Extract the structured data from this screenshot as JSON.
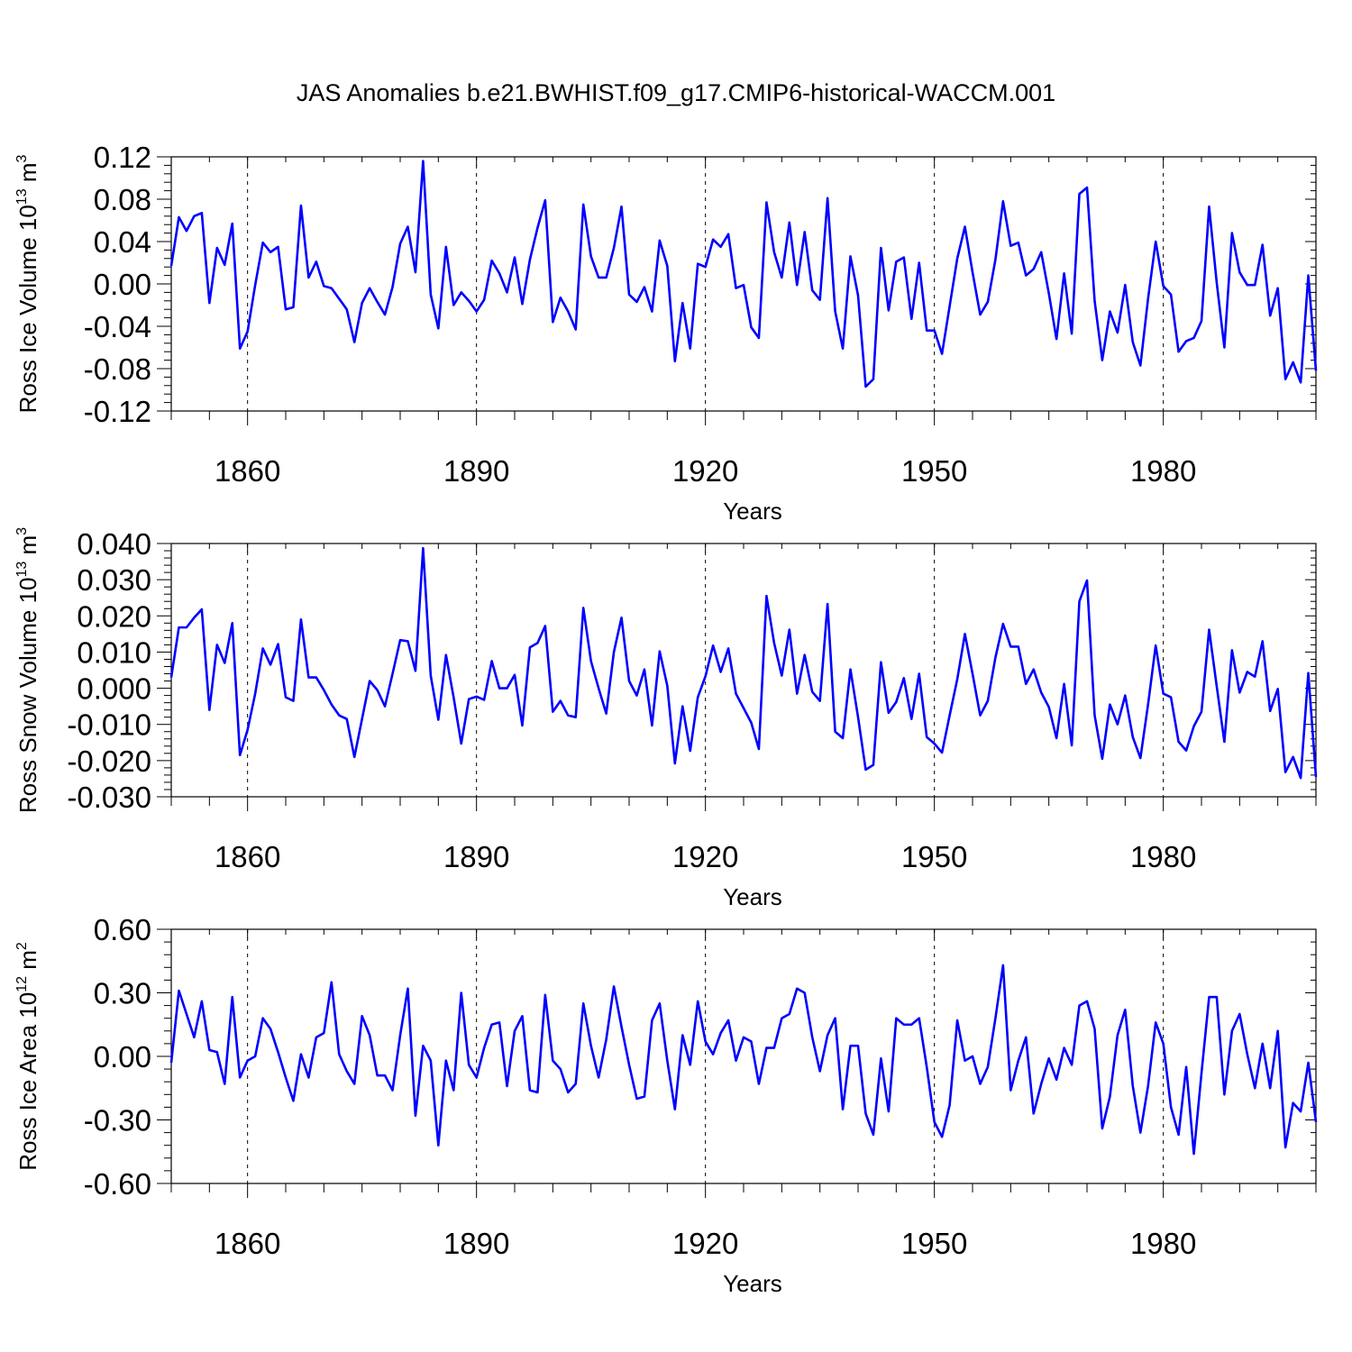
{
  "figure": {
    "title": "JAS Anomalies b.e21.BWHIST.f09_g17.CMIP6-historical-WACCM.001",
    "line_color": "#0000ff"
  },
  "chart_data": [
    {
      "type": "line",
      "name": "ross-ice-volume",
      "ylabel": "Ross Ice Volume 10",
      "ylabel_exp": "13",
      "ylabel_unit": " m",
      "ylabel_unit_exp": "3",
      "xlabel": "Years",
      "xlim": [
        1850,
        2000
      ],
      "ylim": [
        -0.12,
        0.12
      ],
      "yticks": [
        -0.12,
        -0.08,
        -0.04,
        0.0,
        0.04,
        0.08,
        0.12
      ],
      "ytick_labels": [
        "-0.12",
        "-0.08",
        "-0.04",
        "0.00",
        "0.04",
        "0.08",
        "0.12"
      ],
      "xticks": [
        1860,
        1890,
        1920,
        1950,
        1980
      ],
      "xtick_labels": [
        "1860",
        "1890",
        "1920",
        "1950",
        "1980"
      ],
      "x_start": 1850,
      "values": [
        0.017,
        0.063,
        0.05,
        0.064,
        0.067,
        -0.018,
        0.034,
        0.018,
        0.057,
        -0.061,
        -0.045,
        -0.001,
        0.039,
        0.03,
        0.035,
        -0.024,
        -0.022,
        0.074,
        0.006,
        0.021,
        -0.002,
        -0.004,
        -0.014,
        -0.024,
        -0.055,
        -0.018,
        -0.004,
        -0.017,
        -0.029,
        -0.003,
        0.038,
        0.054,
        0.011,
        0.116,
        -0.01,
        -0.042,
        0.035,
        -0.02,
        -0.008,
        -0.016,
        -0.026,
        -0.015,
        0.022,
        0.01,
        -0.008,
        0.025,
        -0.019,
        0.023,
        0.053,
        0.079,
        -0.036,
        -0.013,
        -0.026,
        -0.043,
        0.075,
        0.026,
        0.006,
        0.006,
        0.034,
        0.073,
        -0.01,
        -0.017,
        -0.003,
        -0.026,
        0.041,
        0.017,
        -0.073,
        -0.018,
        -0.061,
        0.019,
        0.016,
        0.042,
        0.035,
        0.047,
        -0.004,
        -0.001,
        -0.041,
        -0.051,
        0.077,
        0.03,
        0.006,
        0.058,
        -0.001,
        0.049,
        -0.006,
        -0.015,
        0.081,
        -0.026,
        -0.061,
        0.026,
        -0.011,
        -0.097,
        -0.09,
        0.034,
        -0.025,
        0.021,
        0.025,
        -0.033,
        0.02,
        -0.044,
        -0.044,
        -0.066,
        -0.021,
        0.024,
        0.054,
        0.011,
        -0.029,
        -0.017,
        0.023,
        0.078,
        0.036,
        0.039,
        0.008,
        0.014,
        0.03,
        -0.009,
        -0.052,
        0.01,
        -0.047,
        0.085,
        0.091,
        -0.016,
        -0.072,
        -0.026,
        -0.046,
        -0.001,
        -0.055,
        -0.077,
        -0.014,
        0.04,
        -0.002,
        -0.01,
        -0.064,
        -0.054,
        -0.051,
        -0.035,
        0.073,
        0.001,
        -0.06,
        0.048,
        0.011,
        -0.001,
        -0.001,
        0.037,
        -0.03,
        -0.004,
        -0.09,
        -0.074,
        -0.093,
        0.008,
        -0.082
      ]
    },
    {
      "type": "line",
      "name": "ross-snow-volume",
      "ylabel": "Ross Snow Volume 10",
      "ylabel_exp": "13",
      "ylabel_unit": " m",
      "ylabel_unit_exp": "3",
      "xlabel": "Years",
      "xlim": [
        1850,
        2000
      ],
      "ylim": [
        -0.03,
        0.04
      ],
      "yticks": [
        -0.03,
        -0.02,
        -0.01,
        0.0,
        0.01,
        0.02,
        0.03,
        0.04
      ],
      "ytick_labels": [
        "-0.030",
        "-0.020",
        "-0.010",
        "0.000",
        "0.010",
        "0.020",
        "0.030",
        "0.040"
      ],
      "xticks": [
        1860,
        1890,
        1920,
        1950,
        1980
      ],
      "xtick_labels": [
        "1860",
        "1890",
        "1920",
        "1950",
        "1980"
      ],
      "x_start": 1850,
      "values": [
        0.003,
        0.0168,
        0.0168,
        0.0195,
        0.0218,
        -0.006,
        0.012,
        0.007,
        0.018,
        -0.0185,
        -0.0115,
        -0.0015,
        0.011,
        0.0065,
        0.0122,
        -0.0025,
        -0.0035,
        0.019,
        0.003,
        0.003,
        -0.0005,
        -0.0045,
        -0.0075,
        -0.0085,
        -0.019,
        -0.0085,
        0.002,
        -0.0005,
        -0.005,
        0.004,
        0.0133,
        0.013,
        0.0048,
        0.0387,
        0.0035,
        -0.0087,
        0.0092,
        -0.0025,
        -0.0153,
        -0.003,
        -0.0023,
        -0.0032,
        0.0075,
        0.0,
        0.0,
        0.0037,
        -0.0103,
        0.0113,
        0.0125,
        0.0172,
        -0.0065,
        -0.0035,
        -0.0075,
        -0.008,
        0.0222,
        0.0075,
        0.0,
        -0.007,
        0.01,
        0.0195,
        0.002,
        -0.002,
        0.0052,
        -0.0103,
        0.0102,
        0.0007,
        -0.0208,
        -0.005,
        -0.0173,
        -0.0025,
        0.0033,
        0.0118,
        0.0045,
        0.011,
        -0.0015,
        -0.0055,
        -0.0095,
        -0.0168,
        0.0255,
        0.0125,
        0.0035,
        0.0162,
        -0.0015,
        0.0092,
        -0.001,
        -0.0035,
        0.0233,
        -0.012,
        -0.0138,
        0.0052,
        -0.008,
        -0.0225,
        -0.0212,
        0.0072,
        -0.0068,
        -0.0038,
        0.0028,
        -0.0085,
        0.004,
        -0.0135,
        -0.0153,
        -0.0178,
        -0.0075,
        0.0025,
        0.015,
        0.004,
        -0.0075,
        -0.0035,
        0.0085,
        0.0178,
        0.0115,
        0.0115,
        0.0012,
        0.0052,
        -0.0012,
        -0.0052,
        -0.0138,
        0.0012,
        -0.0158,
        0.024,
        0.0298,
        -0.0075,
        -0.0195,
        -0.0045,
        -0.01,
        -0.002,
        -0.0135,
        -0.0193,
        -0.0045,
        0.0118,
        -0.0015,
        -0.0025,
        -0.0148,
        -0.0172,
        -0.0105,
        -0.0065,
        0.0162,
        0.0005,
        -0.0148,
        0.0105,
        -0.0012,
        0.0045,
        0.0032,
        0.013,
        -0.0063,
        -0.0002,
        -0.0232,
        -0.019,
        -0.0248,
        0.0042,
        -0.0245
      ]
    },
    {
      "type": "line",
      "name": "ross-ice-area",
      "ylabel": "Ross Ice Area 10",
      "ylabel_exp": "12",
      "ylabel_unit": " m",
      "ylabel_unit_exp": "2",
      "xlabel": "Years",
      "xlim": [
        1850,
        2000
      ],
      "ylim": [
        -0.6,
        0.6
      ],
      "yticks": [
        -0.6,
        -0.3,
        0.0,
        0.3,
        0.6
      ],
      "ytick_labels": [
        "-0.60",
        "-0.30",
        "0.00",
        "0.30",
        "0.60"
      ],
      "xticks": [
        1860,
        1890,
        1920,
        1950,
        1980
      ],
      "xtick_labels": [
        "1860",
        "1890",
        "1920",
        "1950",
        "1980"
      ],
      "x_start": 1850,
      "values": [
        -0.03,
        0.31,
        0.2,
        0.09,
        0.26,
        0.03,
        0.02,
        -0.13,
        0.28,
        -0.1,
        -0.02,
        0.0,
        0.18,
        0.13,
        0.02,
        -0.1,
        -0.21,
        0.01,
        -0.1,
        0.09,
        0.11,
        0.35,
        0.01,
        -0.07,
        -0.13,
        0.19,
        0.1,
        -0.09,
        -0.09,
        -0.16,
        0.1,
        0.32,
        -0.28,
        0.05,
        -0.02,
        -0.42,
        -0.02,
        -0.16,
        0.3,
        -0.04,
        -0.1,
        0.04,
        0.15,
        0.16,
        -0.14,
        0.12,
        0.19,
        -0.16,
        -0.17,
        0.29,
        -0.02,
        -0.06,
        -0.17,
        -0.13,
        0.25,
        0.05,
        -0.1,
        0.08,
        0.33,
        0.14,
        -0.04,
        -0.2,
        -0.19,
        0.17,
        0.25,
        -0.02,
        -0.25,
        0.1,
        -0.04,
        0.26,
        0.07,
        0.01,
        0.11,
        0.17,
        -0.02,
        0.09,
        0.07,
        -0.13,
        0.04,
        0.04,
        0.18,
        0.2,
        0.32,
        0.3,
        0.09,
        -0.07,
        0.1,
        0.18,
        -0.25,
        0.05,
        0.05,
        -0.27,
        -0.37,
        -0.01,
        -0.26,
        0.18,
        0.15,
        0.15,
        0.18,
        -0.05,
        -0.31,
        -0.38,
        -0.23,
        0.17,
        -0.02,
        0.0,
        -0.13,
        -0.05,
        0.18,
        0.43,
        -0.16,
        -0.02,
        0.09,
        -0.27,
        -0.13,
        -0.01,
        -0.11,
        0.04,
        -0.04,
        0.24,
        0.26,
        0.13,
        -0.34,
        -0.19,
        0.1,
        0.22,
        -0.14,
        -0.36,
        -0.14,
        0.16,
        0.06,
        -0.24,
        -0.37,
        -0.05,
        -0.46,
        -0.08,
        0.28,
        0.28,
        -0.18,
        0.12,
        0.2,
        0.01,
        -0.15,
        0.06,
        -0.15,
        0.12,
        -0.43,
        -0.22,
        -0.26,
        -0.03,
        -0.31
      ]
    }
  ]
}
